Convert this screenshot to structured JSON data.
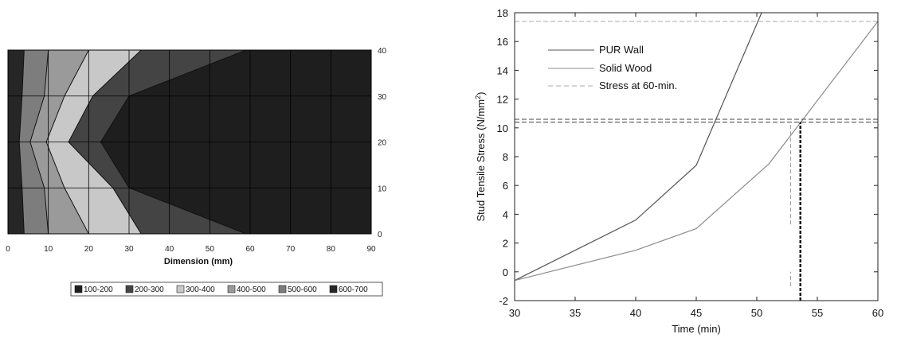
{
  "chart_data": [
    {
      "type": "contour",
      "xlabel": "Dimension (mm)",
      "ylabel": "",
      "xlim": [
        0,
        90
      ],
      "ylim": [
        0,
        40
      ],
      "x_ticks": [
        0,
        10,
        20,
        30,
        40,
        50,
        60,
        70,
        80,
        90
      ],
      "y_ticks": [
        0,
        10,
        20,
        30,
        40
      ],
      "y_axis_side": "right",
      "grid": true,
      "legend_position": "bottom",
      "legend": [
        "100-200",
        "200-300",
        "300-400",
        "400-500",
        "500-600",
        "600-700"
      ],
      "level_colors": [
        "#1e1e1e",
        "#444444",
        "#c8c8c8",
        "#9a9a9a",
        "#7d7d7d",
        "#262626"
      ],
      "regions": [
        {
          "level": "600-700",
          "colorIndex": 5,
          "boundary_y": [
            0,
            10,
            20,
            30,
            40
          ],
          "boundary_x": [
            4,
            3.5,
            2.8,
            3.5,
            4
          ]
        },
        {
          "level": "500-600",
          "colorIndex": 4,
          "boundary_y": [
            0,
            10,
            20,
            30,
            40
          ],
          "boundary_x": [
            10,
            9,
            5.5,
            9,
            10
          ]
        },
        {
          "level": "400-500",
          "colorIndex": 3,
          "boundary_y": [
            0,
            10,
            20,
            30,
            40
          ],
          "boundary_x": [
            20,
            14,
            9.5,
            14,
            20
          ]
        },
        {
          "level": "300-400",
          "colorIndex": 2,
          "boundary_y": [
            0,
            10,
            20,
            30,
            40
          ],
          "boundary_x": [
            33,
            26,
            15,
            21,
            33
          ]
        },
        {
          "level": "200-300",
          "colorIndex": 1,
          "boundary_y": [
            0,
            10,
            20,
            30,
            40
          ],
          "boundary_x": [
            59,
            30,
            23,
            30,
            59
          ]
        },
        {
          "level": "100-200",
          "colorIndex": 0,
          "boundary_y": [
            0,
            10,
            20,
            30,
            40
          ],
          "boundary_x": [
            90,
            90,
            90,
            90,
            90
          ]
        }
      ]
    },
    {
      "type": "line",
      "title": "",
      "xlabel": "Time (min)",
      "ylabel_prefix": "Stud Tensile Stress (N/mm",
      "ylabel_superscript": "2",
      "ylabel_suffix": ")",
      "xlim": [
        30,
        60
      ],
      "ylim": [
        -2,
        18
      ],
      "x_ticks": [
        30,
        35,
        40,
        45,
        50,
        55,
        60
      ],
      "y_ticks": [
        -2,
        0,
        2,
        4,
        6,
        8,
        10,
        12,
        14,
        16,
        18
      ],
      "grid": false,
      "legend_position": "top-left",
      "series": [
        {
          "name": "PUR Wall",
          "color": "#555555",
          "x": [
            30,
            40,
            45,
            50.4
          ],
          "y": [
            -0.6,
            3.6,
            7.4,
            18
          ]
        },
        {
          "name": "Solid Wood",
          "color": "#8c8c8c",
          "x": [
            30,
            40,
            45,
            51,
            60
          ],
          "y": [
            -0.6,
            1.5,
            3.0,
            7.5,
            17.4
          ]
        },
        {
          "name": "Stress at 60-min.",
          "color": "#aaaaaa",
          "dashed": true,
          "style": "reference"
        }
      ],
      "reference_lines": [
        {
          "orientation": "horizontal",
          "y": 17.4,
          "color": "#aaaaaa"
        },
        {
          "orientation": "horizontal",
          "y": 10.4,
          "color": "#444444"
        },
        {
          "orientation": "horizontal",
          "y": 10.6,
          "color": "#444444"
        },
        {
          "orientation": "vertical",
          "x": 52.8,
          "y0": 3.3,
          "y1": 10.4,
          "color": "#999999"
        },
        {
          "orientation": "vertical",
          "x": 52.8,
          "y0": -1.0,
          "y1": 0.0,
          "color": "#999999"
        },
        {
          "orientation": "vertical",
          "x": 53.6,
          "y0": -2,
          "y1": 10.4,
          "color": "#111111",
          "bold": true
        }
      ]
    }
  ]
}
